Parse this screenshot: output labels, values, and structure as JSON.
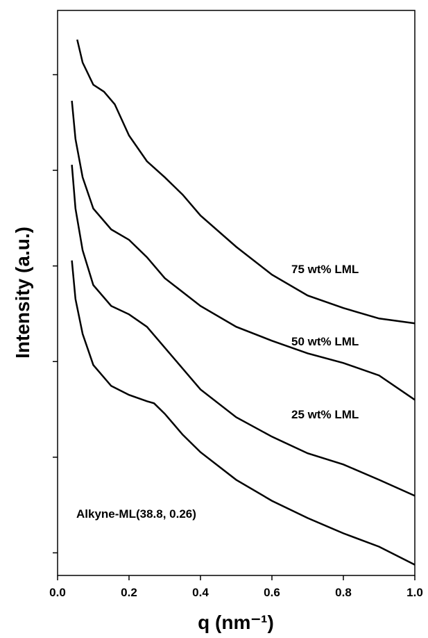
{
  "chart_data": {
    "type": "line",
    "x_label": "q (nm⁻¹)",
    "y_label": "Intensity (a.u.)",
    "xlim": [
      0,
      1
    ],
    "xticks": [
      {
        "value": 0,
        "label": "0.0"
      },
      0.2,
      0.4,
      0.6,
      0.8,
      {
        "value": 1,
        "label": "1.0"
      }
    ],
    "ylim": [
      0.58,
      470000
    ],
    "yticks": [
      1,
      10,
      100,
      1000,
      10000,
      100000
    ],
    "y_log": true,
    "series": [
      {
        "name": "75 wt% LML",
        "color": "#000000",
        "x": [
          0.055,
          0.07,
          0.1,
          0.13,
          0.16,
          0.2,
          0.25,
          0.3,
          0.35,
          0.4,
          0.5,
          0.6,
          0.7,
          0.8,
          0.9,
          1.0
        ],
        "values": [
          232800,
          134000,
          78500,
          66400,
          49100,
          23100,
          12440,
          8460,
          5560,
          3370,
          1585,
          811,
          491,
          363,
          282,
          251
        ]
      },
      {
        "name": "50 wt% LML",
        "color": "#000000",
        "x": [
          0.04,
          0.05,
          0.07,
          0.1,
          0.15,
          0.2,
          0.25,
          0.3,
          0.4,
          0.5,
          0.6,
          0.7,
          0.8,
          0.9,
          1.0
        ],
        "values": [
          53400,
          21250,
          8460,
          3980,
          2410,
          1875,
          1233,
          746,
          382,
          231,
          165,
          122,
          96.7,
          71.6,
          39.8
        ]
      },
      {
        "name": "25 wt% LML",
        "color": "#000000",
        "x": [
          0.04,
          0.05,
          0.07,
          0.1,
          0.15,
          0.2,
          0.25,
          0.3,
          0.35,
          0.4,
          0.5,
          0.6,
          0.7,
          0.8,
          0.9,
          1.0
        ],
        "values": [
          11430,
          3980,
          1458,
          631,
          382,
          312,
          231,
          140,
          84.6,
          51.2,
          26.2,
          16.4,
          11.0,
          8.4,
          5.8,
          3.95
        ]
      },
      {
        "name": "Alkyne-ML(38.8, 0.26)",
        "color": "#000000",
        "x": [
          0.04,
          0.05,
          0.07,
          0.1,
          0.15,
          0.2,
          0.25,
          0.27,
          0.3,
          0.35,
          0.4,
          0.5,
          0.6,
          0.7,
          0.8,
          0.9,
          1.0
        ],
        "values": [
          1140,
          451,
          195,
          92,
          55.6,
          44.8,
          38.5,
          36.6,
          28.5,
          17.2,
          11.3,
          5.8,
          3.5,
          2.31,
          1.6,
          1.16,
          0.75
        ]
      }
    ]
  }
}
